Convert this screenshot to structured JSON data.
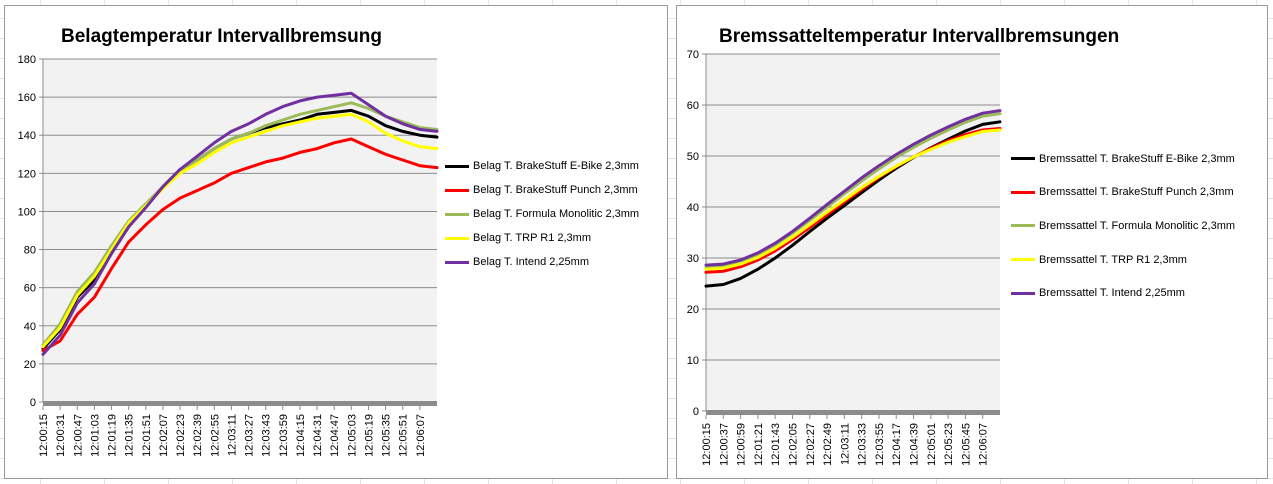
{
  "chart_data": [
    {
      "type": "line",
      "title": "Belagtemperatur Intervallbremsung",
      "xlabel": "",
      "ylabel": "",
      "ylim": [
        0,
        180
      ],
      "yticks": [
        0,
        20,
        40,
        60,
        80,
        100,
        120,
        140,
        160,
        180
      ],
      "grid": true,
      "legend_position": "right",
      "x_tick_labels": [
        "12:00:15",
        "12:00:31",
        "12:00:47",
        "12:01:03",
        "12:01:19",
        "12:01:35",
        "12:01:51",
        "12:02:07",
        "12:02:23",
        "12:02:39",
        "12:02:55",
        "12:03:11",
        "12:03:27",
        "12:03:43",
        "12:03:59",
        "12:04:15",
        "12:04:31",
        "12:04:47",
        "12:05:03",
        "12:05:19",
        "12:05:35",
        "12:05:51",
        "12:06:07"
      ],
      "x": [
        "12:00:15",
        "12:00:31",
        "12:00:47",
        "12:01:03",
        "12:01:19",
        "12:01:35",
        "12:01:51",
        "12:02:07",
        "12:02:23",
        "12:02:39",
        "12:02:55",
        "12:03:11",
        "12:03:27",
        "12:03:43",
        "12:03:59",
        "12:04:15",
        "12:04:31",
        "12:04:47",
        "12:05:03",
        "12:05:19",
        "12:05:35",
        "12:05:51",
        "12:06:07",
        "12:06:15"
      ],
      "series": [
        {
          "name": "Belag T. BrakeStuff E-Bike 2,3mm",
          "color": "#000000",
          "values": [
            28,
            38,
            55,
            64,
            78,
            92,
            103,
            113,
            122,
            127,
            133,
            138,
            141,
            144,
            146,
            148,
            151,
            152,
            153,
            150,
            145,
            142,
            140,
            139
          ]
        },
        {
          "name": "Belag T. BrakeStuff Punch 2,3mm",
          "color": "#ff0000",
          "values": [
            27,
            32,
            46,
            55,
            70,
            84,
            93,
            101,
            107,
            111,
            115,
            120,
            123,
            126,
            128,
            131,
            133,
            136,
            138,
            134,
            130,
            127,
            124,
            123
          ]
        },
        {
          "name": "Belag T. Formula Monolitic 2,3mm",
          "color": "#9bbb59",
          "values": [
            30,
            41,
            58,
            68,
            82,
            95,
            104,
            113,
            121,
            127,
            133,
            138,
            141,
            145,
            148,
            151,
            153,
            155,
            157,
            154,
            150,
            147,
            144,
            143
          ]
        },
        {
          "name": "Belag T. TRP R1  2,3mm",
          "color": "#ffff00",
          "values": [
            29,
            39,
            56,
            66,
            80,
            94,
            103,
            112,
            120,
            125,
            131,
            136,
            139,
            142,
            145,
            147,
            149,
            150,
            151,
            147,
            141,
            137,
            134,
            133
          ]
        },
        {
          "name": "Belag T. Intend 2,25mm",
          "color": "#7030a0",
          "values": [
            25,
            35,
            52,
            62,
            78,
            92,
            102,
            113,
            122,
            129,
            136,
            142,
            146,
            151,
            155,
            158,
            160,
            161,
            162,
            156,
            150,
            146,
            143,
            142
          ]
        }
      ]
    },
    {
      "type": "line",
      "title": "Bremssatteltemperatur Intervallbremsungen",
      "xlabel": "",
      "ylabel": "",
      "ylim": [
        0,
        70
      ],
      "yticks": [
        0,
        10,
        20,
        30,
        40,
        50,
        60,
        70
      ],
      "grid": true,
      "legend_position": "right",
      "x_tick_labels": [
        "12:00:15",
        "12:00:37",
        "12:00:59",
        "12:01:21",
        "12:01:43",
        "12:02:05",
        "12:02:27",
        "12:02:49",
        "12:03:11",
        "12:03:33",
        "12:03:55",
        "12:04:17",
        "12:04:39",
        "12:05:01",
        "12:05:23",
        "12:05:45",
        "12:06:07"
      ],
      "x": [
        "12:00:15",
        "12:00:37",
        "12:00:59",
        "12:01:21",
        "12:01:43",
        "12:02:05",
        "12:02:27",
        "12:02:49",
        "12:03:11",
        "12:03:33",
        "12:03:55",
        "12:04:17",
        "12:04:39",
        "12:05:01",
        "12:05:23",
        "12:05:45",
        "12:06:07",
        "12:06:15"
      ],
      "series": [
        {
          "name": "Bremssattel T. BrakeStuff E-Bike 2,3mm",
          "color": "#000000",
          "values": [
            24.5,
            24.8,
            26.0,
            27.8,
            30.0,
            32.5,
            35.2,
            37.8,
            40.3,
            42.8,
            45.3,
            47.6,
            49.7,
            51.6,
            53.3,
            54.9,
            56.2,
            56.7
          ]
        },
        {
          "name": "Bremssattel T. BrakeStuff Punch 2,3mm",
          "color": "#ff0000",
          "values": [
            27.2,
            27.4,
            28.3,
            29.6,
            31.4,
            33.6,
            36.0,
            38.5,
            41.0,
            43.4,
            45.8,
            47.9,
            49.8,
            51.5,
            53.0,
            54.2,
            55.1,
            55.4
          ]
        },
        {
          "name": "Bremssattel T. Formula Monolitic 2,3mm",
          "color": "#9bbb59",
          "values": [
            28.2,
            28.4,
            29.3,
            30.7,
            32.6,
            34.9,
            37.4,
            40.0,
            42.6,
            45.1,
            47.5,
            49.7,
            51.7,
            53.5,
            55.1,
            56.6,
            57.8,
            58.3
          ]
        },
        {
          "name": "Bremssattel T. TRP R1  2,3mm",
          "color": "#ffff00",
          "values": [
            27.8,
            28.0,
            28.8,
            30.1,
            31.9,
            34.1,
            36.5,
            39.0,
            41.4,
            43.8,
            46.0,
            48.0,
            49.8,
            51.3,
            52.7,
            53.8,
            54.8,
            55.1
          ]
        },
        {
          "name": "Bremssattel T. Intend 2,25mm",
          "color": "#7030a0",
          "values": [
            28.6,
            28.8,
            29.6,
            31.0,
            32.9,
            35.2,
            37.8,
            40.5,
            43.1,
            45.7,
            48.1,
            50.3,
            52.3,
            54.1,
            55.7,
            57.2,
            58.4,
            58.9
          ]
        }
      ]
    }
  ]
}
